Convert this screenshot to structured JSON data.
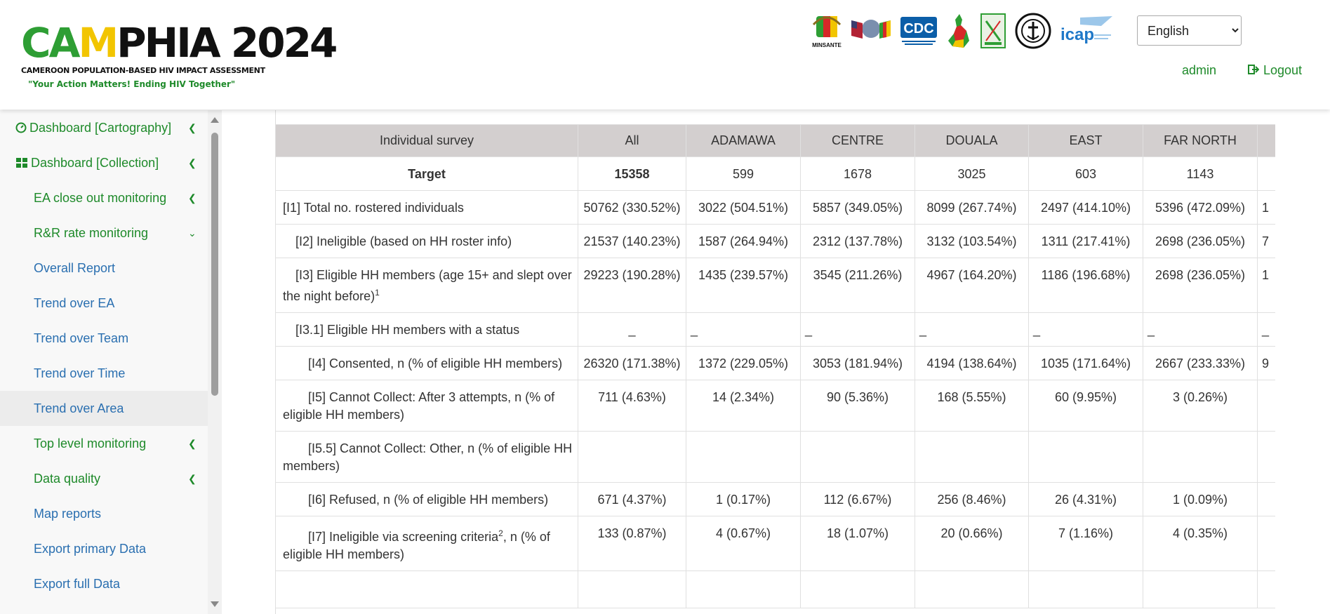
{
  "header": {
    "logo_title_parts": [
      "CA",
      "M",
      "PHIA 2024"
    ],
    "logo_subtitle": "CAMEROON POPULATION-BASED HIV IMPACT ASSESSMENT",
    "logo_tagline": "\"Your Action Matters! Ending HIV Together\"",
    "partner_logos": [
      {
        "icon": "minsante-coat-of-arms-icon",
        "label": "MINSANTE"
      },
      {
        "icon": "us-cameroon-flags-icon",
        "label": ""
      },
      {
        "icon": "cdc-logo-icon",
        "label": "CDC"
      },
      {
        "icon": "cameroon-map-icon",
        "label": ""
      },
      {
        "icon": "cnls-logo-icon",
        "label": ""
      },
      {
        "icon": "seal-logo-icon",
        "label": ""
      },
      {
        "icon": "icap-logo-icon",
        "label": "icap"
      }
    ],
    "language": {
      "selected": "English"
    },
    "user": "admin",
    "logout_label": "Logout",
    "colors": {
      "brand_green": "#1e8a2a",
      "link_blue": "#2a6fb0"
    }
  },
  "sidebar": {
    "items": [
      {
        "label": "Dashboard [Cartography]",
        "icon": "dashboard-gauge-icon",
        "chevron": "left"
      },
      {
        "label": "Dashboard [Collection]",
        "icon": "grid-icon",
        "chevron": "left"
      },
      {
        "label": "EA close out monitoring",
        "chevron": "left"
      },
      {
        "label": "R&R rate monitoring",
        "chevron": "down"
      },
      {
        "label": "Overall Report"
      },
      {
        "label": "Trend over EA"
      },
      {
        "label": "Trend over Team"
      },
      {
        "label": "Trend over Time"
      },
      {
        "label": "Trend over Area",
        "active": true
      },
      {
        "label": "Top level monitoring",
        "chevron": "left"
      },
      {
        "label": "Data quality",
        "chevron": "left"
      },
      {
        "label": "Map reports"
      },
      {
        "label": "Export primary Data"
      },
      {
        "label": "Export full Data"
      }
    ]
  },
  "table": {
    "headers": [
      "Individual survey",
      "All",
      "ADAMAWA",
      "CENTRE",
      "DOUALA",
      "EAST",
      "FAR NORTH",
      ""
    ],
    "rows": [
      {
        "label": "Target",
        "label_sup": "",
        "cells": [
          "15358",
          "599",
          "1678",
          "3025",
          "603",
          "1143",
          ""
        ]
      },
      {
        "label": "[I1] Total no. rostered individuals",
        "label_sup": "",
        "cells": [
          "50762 (330.52%)",
          "3022 (504.51%)",
          "5857 (349.05%)",
          "8099 (267.74%)",
          "2497 (414.10%)",
          "5396 (472.09%)",
          "1"
        ]
      },
      {
        "label": "[I2] Ineligible (based on HH roster info)",
        "label_sup": "",
        "cells": [
          "21537 (140.23%)",
          "1587 (264.94%)",
          "2312 (137.78%)",
          "3132 (103.54%)",
          "1311 (217.41%)",
          "2698 (236.05%)",
          "7"
        ]
      },
      {
        "label": "[I3] Eligible HH members (age 15+ and slept over the night before)",
        "label_sup": "1",
        "cells": [
          "29223 (190.28%)",
          "1435 (239.57%)",
          "3545 (211.26%)",
          "4967 (164.20%)",
          "1186 (196.68%)",
          "2698 (236.05%)",
          "1"
        ]
      },
      {
        "label": "[I3.1] Eligible HH members with a status",
        "label_sup": "",
        "cells": [
          "_",
          "_",
          "_",
          "_",
          "_",
          "_",
          "_"
        ]
      },
      {
        "label": "[I4] Consented, n (% of eligible HH members)",
        "label_sup": "",
        "cells": [
          "26320 (171.38%)",
          "1372 (229.05%)",
          "3053 (181.94%)",
          "4194 (138.64%)",
          "1035 (171.64%)",
          "2667 (233.33%)",
          "9"
        ]
      },
      {
        "label": "[I5] Cannot Collect: After 3 attempts, n (% of eligible HH members)",
        "label_sup": "",
        "cells": [
          "711 (4.63%)",
          "14 (2.34%)",
          "90 (5.36%)",
          "168 (5.55%)",
          "60 (9.95%)",
          "3 (0.26%)",
          ""
        ]
      },
      {
        "label": "[I5.5] Cannot Collect: Other, n (% of eligible HH members)",
        "label_sup": "",
        "cells": [
          "",
          "",
          "",
          "",
          "",
          "",
          ""
        ]
      },
      {
        "label": "[I6] Refused, n (% of eligible HH members)",
        "label_sup": "",
        "cells": [
          "671 (4.37%)",
          "1 (0.17%)",
          "112 (6.67%)",
          "256 (8.46%)",
          "26 (4.31%)",
          "1 (0.09%)",
          ""
        ]
      },
      {
        "label_parts": [
          "[I7] Ineligible via screening criteria",
          "2",
          ", n (% of eligible HH members)"
        ],
        "cells": [
          "133 (0.87%)",
          "4 (0.67%)",
          "18 (1.07%)",
          "20 (0.66%)",
          "7 (1.16%)",
          "4 (0.35%)",
          ""
        ]
      }
    ]
  }
}
